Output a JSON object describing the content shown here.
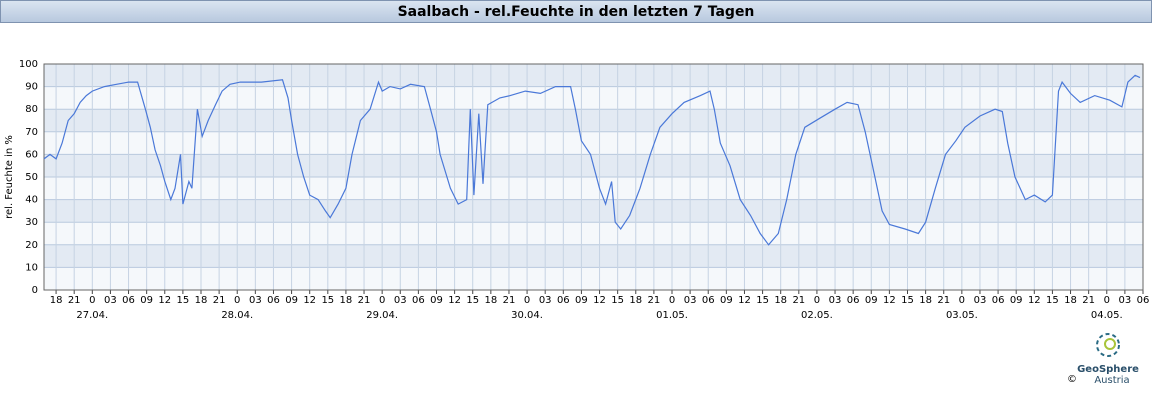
{
  "header": {
    "title": "Saalbach - rel.Feuchte in den letzten 7 Tagen"
  },
  "chart_data": {
    "type": "line",
    "ylabel": "rel. Feuchte in %",
    "grid": true,
    "xlim": [
      -8,
      174
    ],
    "ylim": [
      0,
      100
    ],
    "yticks": [
      0,
      10,
      20,
      30,
      40,
      50,
      60,
      70,
      80,
      90,
      100
    ],
    "xticks": [
      {
        "value": -6,
        "label": "18"
      },
      {
        "value": -3,
        "label": "21"
      },
      {
        "value": 0,
        "label": "0"
      },
      {
        "value": 3,
        "label": "03"
      },
      {
        "value": 6,
        "label": "06"
      },
      {
        "value": 9,
        "label": "09"
      },
      {
        "value": 12,
        "label": "12"
      },
      {
        "value": 15,
        "label": "15"
      },
      {
        "value": 18,
        "label": "18"
      },
      {
        "value": 21,
        "label": "21"
      },
      {
        "value": 24,
        "label": "0"
      },
      {
        "value": 27,
        "label": "03"
      },
      {
        "value": 30,
        "label": "06"
      },
      {
        "value": 33,
        "label": "09"
      },
      {
        "value": 36,
        "label": "12"
      },
      {
        "value": 39,
        "label": "15"
      },
      {
        "value": 42,
        "label": "18"
      },
      {
        "value": 45,
        "label": "21"
      },
      {
        "value": 48,
        "label": "0"
      },
      {
        "value": 51,
        "label": "03"
      },
      {
        "value": 54,
        "label": "06"
      },
      {
        "value": 57,
        "label": "09"
      },
      {
        "value": 60,
        "label": "12"
      },
      {
        "value": 63,
        "label": "15"
      },
      {
        "value": 66,
        "label": "18"
      },
      {
        "value": 69,
        "label": "21"
      },
      {
        "value": 72,
        "label": "0"
      },
      {
        "value": 75,
        "label": "03"
      },
      {
        "value": 78,
        "label": "06"
      },
      {
        "value": 81,
        "label": "09"
      },
      {
        "value": 84,
        "label": "12"
      },
      {
        "value": 87,
        "label": "15"
      },
      {
        "value": 90,
        "label": "18"
      },
      {
        "value": 93,
        "label": "21"
      },
      {
        "value": 96,
        "label": "0"
      },
      {
        "value": 99,
        "label": "03"
      },
      {
        "value": 102,
        "label": "06"
      },
      {
        "value": 105,
        "label": "09"
      },
      {
        "value": 108,
        "label": "12"
      },
      {
        "value": 111,
        "label": "15"
      },
      {
        "value": 114,
        "label": "18"
      },
      {
        "value": 117,
        "label": "21"
      },
      {
        "value": 120,
        "label": "0"
      },
      {
        "value": 123,
        "label": "03"
      },
      {
        "value": 126,
        "label": "06"
      },
      {
        "value": 129,
        "label": "09"
      },
      {
        "value": 132,
        "label": "12"
      },
      {
        "value": 135,
        "label": "15"
      },
      {
        "value": 138,
        "label": "18"
      },
      {
        "value": 141,
        "label": "21"
      },
      {
        "value": 144,
        "label": "0"
      },
      {
        "value": 147,
        "label": "03"
      },
      {
        "value": 150,
        "label": "06"
      },
      {
        "value": 153,
        "label": "09"
      },
      {
        "value": 156,
        "label": "12"
      },
      {
        "value": 159,
        "label": "15"
      },
      {
        "value": 162,
        "label": "18"
      },
      {
        "value": 165,
        "label": "21"
      },
      {
        "value": 168,
        "label": "0"
      },
      {
        "value": 171,
        "label": "03"
      },
      {
        "value": 174,
        "label": "06"
      }
    ],
    "date_labels": [
      {
        "value": 0,
        "label": "27.04."
      },
      {
        "value": 24,
        "label": "28.04."
      },
      {
        "value": 48,
        "label": "29.04."
      },
      {
        "value": 72,
        "label": "30.04."
      },
      {
        "value": 96,
        "label": "01.05."
      },
      {
        "value": 120,
        "label": "02.05."
      },
      {
        "value": 144,
        "label": "03.05."
      },
      {
        "value": 168,
        "label": "04.05."
      }
    ],
    "x": [
      -8,
      -7,
      -6,
      -5,
      -4,
      -3,
      -2,
      -1,
      0,
      2,
      4,
      6,
      7.5,
      8.8,
      9.6,
      10.4,
      11.3,
      12,
      13,
      13.7,
      14.6,
      15,
      16,
      16.5,
      17.4,
      18.2,
      19.2,
      20.4,
      21.5,
      22.8,
      24.5,
      28,
      31.5,
      32.4,
      33,
      34,
      35,
      36,
      37.4,
      38.6,
      39.4,
      40.7,
      42,
      43,
      44.4,
      46,
      47.4,
      48,
      49.3,
      51,
      52.7,
      55,
      56,
      57,
      57.6,
      59.3,
      60.6,
      62,
      62.6,
      63.2,
      64,
      64.7,
      65.5,
      67.5,
      69.2,
      71.7,
      74.2,
      76.7,
      79.2,
      80,
      81,
      82.5,
      84,
      85,
      86,
      86.6,
      87.5,
      89,
      90.7,
      92.4,
      94,
      96,
      98,
      100.7,
      102.3,
      103,
      104,
      105.6,
      107.3,
      109,
      110.6,
      112,
      113.6,
      115,
      116.5,
      118,
      120.5,
      123,
      125,
      126.8,
      128,
      129.6,
      130.8,
      132,
      134.6,
      136.8,
      138,
      139.6,
      141.3,
      143,
      144.5,
      147,
      149.5,
      150.7,
      151.6,
      152.8,
      154.5,
      156,
      157.8,
      159,
      160,
      160.6,
      162,
      163.6,
      166,
      168.5,
      170.5,
      171.5,
      172.7,
      173.5
    ],
    "series": [
      {
        "name": "rel.Feuchte",
        "color": "#4a78d8",
        "values": [
          58,
          60,
          58,
          65,
          75,
          78,
          83,
          86,
          88,
          90,
          91,
          92,
          92,
          80,
          72,
          62,
          55,
          48,
          40,
          45,
          60,
          38,
          48,
          45,
          80,
          68,
          75,
          82,
          88,
          91,
          92,
          92,
          93,
          85,
          75,
          60,
          50,
          42,
          40,
          35,
          32,
          38,
          45,
          60,
          75,
          80,
          92,
          88,
          90,
          89,
          91,
          90,
          80,
          70,
          60,
          45,
          38,
          40,
          80,
          42,
          78,
          47,
          82,
          85,
          86,
          88,
          87,
          90,
          90,
          80,
          66,
          60,
          45,
          38,
          48,
          30,
          27,
          33,
          45,
          60,
          72,
          78,
          83,
          86,
          88,
          80,
          65,
          55,
          40,
          33,
          25,
          20,
          25,
          40,
          60,
          72,
          76,
          80,
          83,
          82,
          70,
          50,
          35,
          29,
          27,
          25,
          30,
          45,
          60,
          66,
          72,
          77,
          80,
          79,
          65,
          50,
          40,
          42,
          39,
          42,
          88,
          92,
          87,
          83,
          86,
          84,
          81,
          92,
          95,
          94
        ]
      }
    ]
  },
  "footer": {
    "copyright": "©",
    "logo_top": "GeoSphere",
    "logo_bottom": "Austria"
  }
}
